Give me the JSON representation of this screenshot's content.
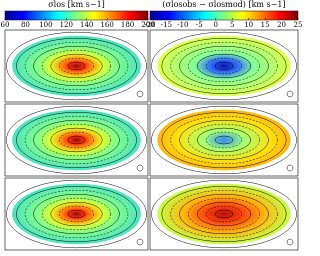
{
  "chart_data": [
    {
      "type": "colorbar",
      "label": "σlos [km s−1]",
      "xlim": [
        60,
        200
      ],
      "xticks": [
        60,
        80,
        100,
        120,
        140,
        160,
        180,
        200
      ],
      "colors": [
        "#00008f",
        "#0000ff",
        "#0080ff",
        "#00ffff",
        "#80ff80",
        "#ffff00",
        "#ff8000",
        "#ff0000",
        "#800000"
      ]
    },
    {
      "type": "colorbar",
      "label": "(σlosobs − σlosmod) [km s−1]",
      "xlim": [
        -20,
        25
      ],
      "xticks": [
        -20,
        -15,
        -10,
        -5,
        0,
        5,
        10,
        15,
        20,
        25
      ],
      "colors": [
        "#00008f",
        "#0000ff",
        "#0080ff",
        "#00ffff",
        "#80ff80",
        "#ffff00",
        "#ff8000",
        "#ff0000",
        "#800000"
      ]
    }
  ]
}
